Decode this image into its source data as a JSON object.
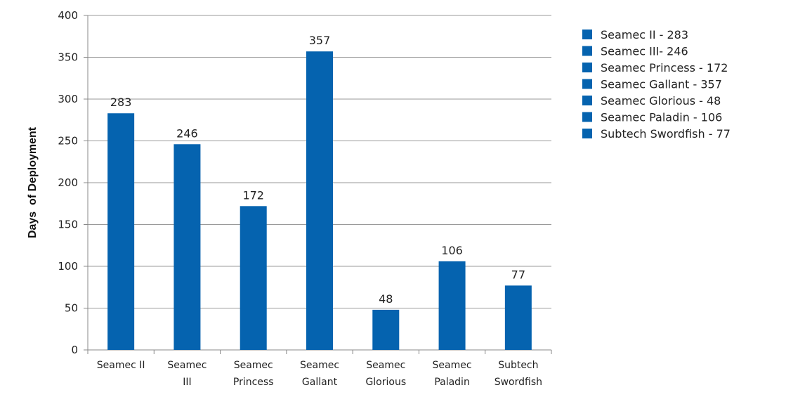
{
  "chart_data": {
    "type": "bar",
    "categories": [
      [
        "Seamec II"
      ],
      [
        "Seamec",
        "III"
      ],
      [
        "Seamec",
        "Princess"
      ],
      [
        "Seamec",
        "Gallant"
      ],
      [
        "Seamec",
        "Glorious"
      ],
      [
        "Seamec",
        "Paladin"
      ],
      [
        "Subtech",
        "Swordfish"
      ]
    ],
    "series": [
      {
        "values": [
          283,
          246,
          172,
          357,
          48,
          106,
          77
        ],
        "color": "#0563AF"
      }
    ],
    "data_labels": [
      "283",
      "246",
      "172",
      "357",
      "48",
      "106",
      "77"
    ],
    "ylabel": "Days  of Deployment",
    "ylim": [
      0,
      400
    ],
    "yticks": [
      0,
      50,
      100,
      150,
      200,
      250,
      300,
      350,
      400
    ],
    "grid": true,
    "legend": {
      "placement": "right",
      "entries": [
        "Seamec II - 283",
        "Seamec III- 246",
        "Seamec Princess - 172",
        "Seamec Gallant - 357",
        "Seamec Glorious - 48",
        "Seamec Paladin - 106",
        "Subtech Swordfish - 77"
      ]
    }
  }
}
